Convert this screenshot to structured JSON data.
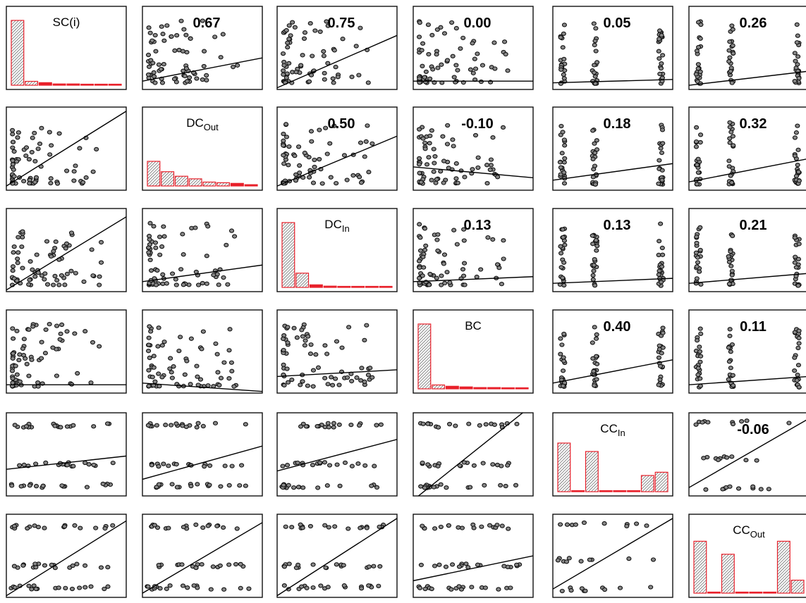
{
  "variables": [
    {
      "base": "SC(i)",
      "sub": ""
    },
    {
      "base": "DC",
      "sub": "Out"
    },
    {
      "base": "DC",
      "sub": "In"
    },
    {
      "base": "BC",
      "sub": ""
    },
    {
      "base": "CC",
      "sub": "In"
    },
    {
      "base": "CC",
      "sub": "Out"
    }
  ],
  "chart_data": {
    "type": "scatter",
    "kind": "scatterplot-matrix",
    "title": "",
    "xlabel": "",
    "ylabel": "",
    "correlations": [
      [
        null,
        "0.67",
        "0.75",
        "0.00",
        "0.05",
        "0.26"
      ],
      [
        null,
        null,
        "0.50",
        "-0.10",
        "0.18",
        "0.32"
      ],
      [
        null,
        null,
        null,
        "0.13",
        "0.13",
        "0.21"
      ],
      [
        null,
        null,
        null,
        null,
        "0.40",
        "0.11"
      ],
      [
        null,
        null,
        null,
        null,
        null,
        "-0.06"
      ],
      [
        null,
        null,
        null,
        null,
        null,
        null
      ]
    ],
    "histograms": [
      [
        1.0,
        0.06,
        0.04,
        0.02,
        0.02,
        0.01,
        0.01,
        0.01
      ],
      [
        0.38,
        0.22,
        0.15,
        0.11,
        0.06,
        0.05,
        0.04,
        0.02
      ],
      [
        1.0,
        0.22,
        0.04,
        0.02,
        0.01,
        0.01,
        0.01,
        0.01
      ],
      [
        1.0,
        0.06,
        0.04,
        0.03,
        0.02,
        0.02,
        0.01,
        0.01
      ],
      [
        0.75,
        0.0,
        0.62,
        0.0,
        0.0,
        0.0,
        0.25,
        0.3
      ],
      [
        0.8,
        0.0,
        0.6,
        0.0,
        0.0,
        0.0,
        0.8,
        0.2
      ]
    ],
    "colors": {
      "histogram": "#e8202a",
      "points": "#111111",
      "frame": "#111111",
      "text": "#000000"
    },
    "grid": false,
    "legend": "none"
  }
}
